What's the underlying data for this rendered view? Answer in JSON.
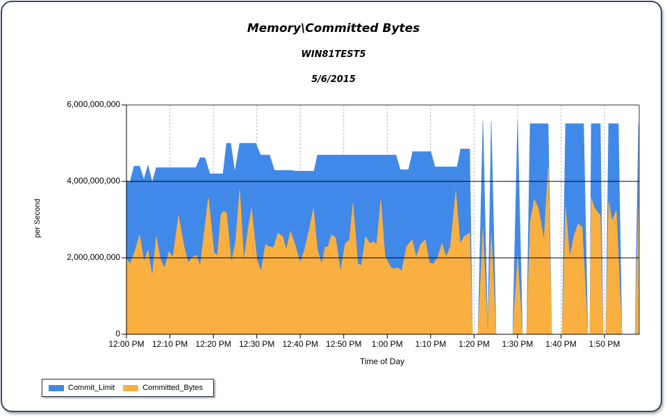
{
  "chart_data": {
    "type": "area",
    "title": "Memory\\Committed Bytes",
    "subtitle": "WIN81TEST5",
    "date": "5/6/2015",
    "xlabel": "Time of Day",
    "ylabel": "per Second",
    "ylim": [
      0,
      6000000000
    ],
    "xlim_minutes": [
      0,
      117.8
    ],
    "grid": {
      "horizontal": true,
      "vertical_dashed": true
    },
    "legend_position": "bottom-left",
    "y_ticks": [
      "6,000,000,000",
      "4,000,000,000",
      "2,000,000,000",
      "0"
    ],
    "y_tick_values": [
      6000000000,
      4000000000,
      2000000000,
      0
    ],
    "x_ticks": [
      "12:00 PM",
      "12:10 PM",
      "12:20 PM",
      "12:30 PM",
      "12:40 PM",
      "12:50 PM",
      "1:00 PM",
      "1:10 PM",
      "1:20 PM",
      "1:30 PM",
      "1:40 PM",
      "1:50 PM"
    ],
    "x_tick_minutes": [
      0,
      10,
      20,
      30,
      40,
      50,
      60,
      70,
      80,
      90,
      100,
      110
    ],
    "value_unit": "billions (1e9) per point: [minutes after 12:00 PM, value]",
    "series": [
      {
        "name": "Commit_Limit",
        "color": "#4189e8",
        "points": [
          [
            0,
            4.02
          ],
          [
            0.8,
            3.98
          ],
          [
            1.76,
            4.4
          ],
          [
            3.04,
            4.4
          ],
          [
            4.0,
            4.05
          ],
          [
            4.96,
            4.42
          ],
          [
            5.92,
            3.98
          ],
          [
            6.87,
            4.36
          ],
          [
            15.99,
            4.36
          ],
          [
            16.95,
            4.62
          ],
          [
            18.07,
            4.62
          ],
          [
            19.19,
            4.2
          ],
          [
            22.22,
            4.2
          ],
          [
            23.02,
            5.0
          ],
          [
            23.98,
            5.0
          ],
          [
            24.94,
            4.25
          ],
          [
            26.06,
            5.0
          ],
          [
            29.74,
            5.0
          ],
          [
            30.86,
            4.69
          ],
          [
            32.94,
            4.69
          ],
          [
            34.06,
            4.29
          ],
          [
            38.05,
            4.29
          ],
          [
            38.85,
            4.27
          ],
          [
            43.17,
            4.27
          ],
          [
            43.97,
            4.69
          ],
          [
            62.04,
            4.69
          ],
          [
            63.0,
            4.31
          ],
          [
            64.91,
            4.31
          ],
          [
            65.87,
            4.78
          ],
          [
            70.03,
            4.78
          ],
          [
            70.99,
            4.38
          ],
          [
            76.1,
            4.38
          ],
          [
            76.9,
            4.85
          ],
          [
            78.98,
            4.85
          ],
          [
            79.62,
            0
          ],
          [
            80.9,
            0
          ],
          [
            82.02,
            5.58
          ],
          [
            83.14,
            0
          ],
          [
            83.94,
            5.58
          ],
          [
            85.06,
            0
          ],
          [
            88.9,
            0
          ],
          [
            90.01,
            5.58
          ],
          [
            91.13,
            0
          ],
          [
            92.1,
            0
          ],
          [
            92.89,
            5.51
          ],
          [
            97.05,
            5.51
          ],
          [
            97.85,
            0
          ],
          [
            100.25,
            0
          ],
          [
            101.05,
            5.51
          ],
          [
            105.2,
            5.51
          ],
          [
            106.16,
            0
          ],
          [
            106.64,
            0
          ],
          [
            106.96,
            5.51
          ],
          [
            109.04,
            5.51
          ],
          [
            109.68,
            0
          ],
          [
            110.32,
            0
          ],
          [
            110.96,
            5.51
          ],
          [
            113.2,
            5.51
          ],
          [
            114.0,
            0
          ],
          [
            117.04,
            0
          ],
          [
            117.84,
            5.51
          ]
        ]
      },
      {
        "name": "Committed_Bytes",
        "color": "#f9b041",
        "points": [
          [
            0,
            1.98
          ],
          [
            0.8,
            1.84
          ],
          [
            1.76,
            2.11
          ],
          [
            3.04,
            2.6
          ],
          [
            4.0,
            1.91
          ],
          [
            4.96,
            2.2
          ],
          [
            5.92,
            1.51
          ],
          [
            6.87,
            2.56
          ],
          [
            7.83,
            1.95
          ],
          [
            8.79,
            1.73
          ],
          [
            9.75,
            2.16
          ],
          [
            10.71,
            2.02
          ],
          [
            11.99,
            3.11
          ],
          [
            13.27,
            2.29
          ],
          [
            14.23,
            1.87
          ],
          [
            15.19,
            2.02
          ],
          [
            16.15,
            2.07
          ],
          [
            16.95,
            1.78
          ],
          [
            18.87,
            3.58
          ],
          [
            20.15,
            2.13
          ],
          [
            20.95,
            2.07
          ],
          [
            21.75,
            3.13
          ],
          [
            22.39,
            3.22
          ],
          [
            23.02,
            3.18
          ],
          [
            24.14,
            1.89
          ],
          [
            25.1,
            2.4
          ],
          [
            26.06,
            3.8
          ],
          [
            27.02,
            1.93
          ],
          [
            27.98,
            2.75
          ],
          [
            28.78,
            3.29
          ],
          [
            30.06,
            1.93
          ],
          [
            31.02,
            1.65
          ],
          [
            31.98,
            2.35
          ],
          [
            32.94,
            2.29
          ],
          [
            33.9,
            2.27
          ],
          [
            34.86,
            2.65
          ],
          [
            35.98,
            2.56
          ],
          [
            36.78,
            2.2
          ],
          [
            37.74,
            2.69
          ],
          [
            38.7,
            2.38
          ],
          [
            39.98,
            1.87
          ],
          [
            40.94,
            2.2
          ],
          [
            42.06,
            2.75
          ],
          [
            43.02,
            3.29
          ],
          [
            43.97,
            2.2
          ],
          [
            44.93,
            1.84
          ],
          [
            45.73,
            2.29
          ],
          [
            46.37,
            2.29
          ],
          [
            47.17,
            2.6
          ],
          [
            48.13,
            2.53
          ],
          [
            49.25,
            1.65
          ],
          [
            50.37,
            2.38
          ],
          [
            51.33,
            2.47
          ],
          [
            52.13,
            3.44
          ],
          [
            53.25,
            1.84
          ],
          [
            54.05,
            1.8
          ],
          [
            55.01,
            2.56
          ],
          [
            55.97,
            2.38
          ],
          [
            56.93,
            2.42
          ],
          [
            57.57,
            2.35
          ],
          [
            58.53,
            3.53
          ],
          [
            59.49,
            2.06
          ],
          [
            60.77,
            1.75
          ],
          [
            61.73,
            1.71
          ],
          [
            62.37,
            1.75
          ],
          [
            63.33,
            1.65
          ],
          [
            64.45,
            2.29
          ],
          [
            65.72,
            2.47
          ],
          [
            66.68,
            2.02
          ],
          [
            67.64,
            2.35
          ],
          [
            68.76,
            2.47
          ],
          [
            69.72,
            1.87
          ],
          [
            70.68,
            1.84
          ],
          [
            71.64,
            2.02
          ],
          [
            72.6,
            2.38
          ],
          [
            73.56,
            2.02
          ],
          [
            74.52,
            2.29
          ],
          [
            75.8,
            3.76
          ],
          [
            76.76,
            2.38
          ],
          [
            77.72,
            2.56
          ],
          [
            79.0,
            2.65
          ],
          [
            79.62,
            0
          ],
          [
            80.9,
            0
          ],
          [
            82.02,
            2.78
          ],
          [
            83.14,
            0
          ],
          [
            83.94,
            2.65
          ],
          [
            85.06,
            0
          ],
          [
            88.9,
            0
          ],
          [
            90.01,
            2.05
          ],
          [
            91.13,
            0
          ],
          [
            92.1,
            0
          ],
          [
            92.89,
            2.93
          ],
          [
            93.85,
            3.53
          ],
          [
            94.81,
            3.29
          ],
          [
            96.09,
            2.47
          ],
          [
            97.05,
            4.38
          ],
          [
            97.85,
            0
          ],
          [
            100.25,
            0
          ],
          [
            101.05,
            3.33
          ],
          [
            102.01,
            2.02
          ],
          [
            102.97,
            2.56
          ],
          [
            103.93,
            2.89
          ],
          [
            104.88,
            2.8
          ],
          [
            106.16,
            0
          ],
          [
            106.64,
            0
          ],
          [
            106.96,
            3.56
          ],
          [
            107.76,
            3.29
          ],
          [
            109.04,
            3.11
          ],
          [
            109.68,
            0
          ],
          [
            110.32,
            0
          ],
          [
            110.96,
            3.47
          ],
          [
            111.76,
            2.96
          ],
          [
            112.72,
            3.25
          ],
          [
            114.0,
            0
          ],
          [
            117.04,
            0
          ],
          [
            117.84,
            3.29
          ]
        ]
      }
    ]
  },
  "header": {
    "title": "Memory\\Committed Bytes",
    "subtitle": "WIN81TEST5",
    "date": "5/6/2015"
  },
  "axes": {
    "xlabel": "Time of Day",
    "ylabel": "per Second"
  },
  "legend": {
    "items": [
      {
        "label": "Commit_Limit",
        "color": "#4189e8"
      },
      {
        "label": "Committed_Bytes",
        "color": "#f9b041"
      }
    ]
  }
}
